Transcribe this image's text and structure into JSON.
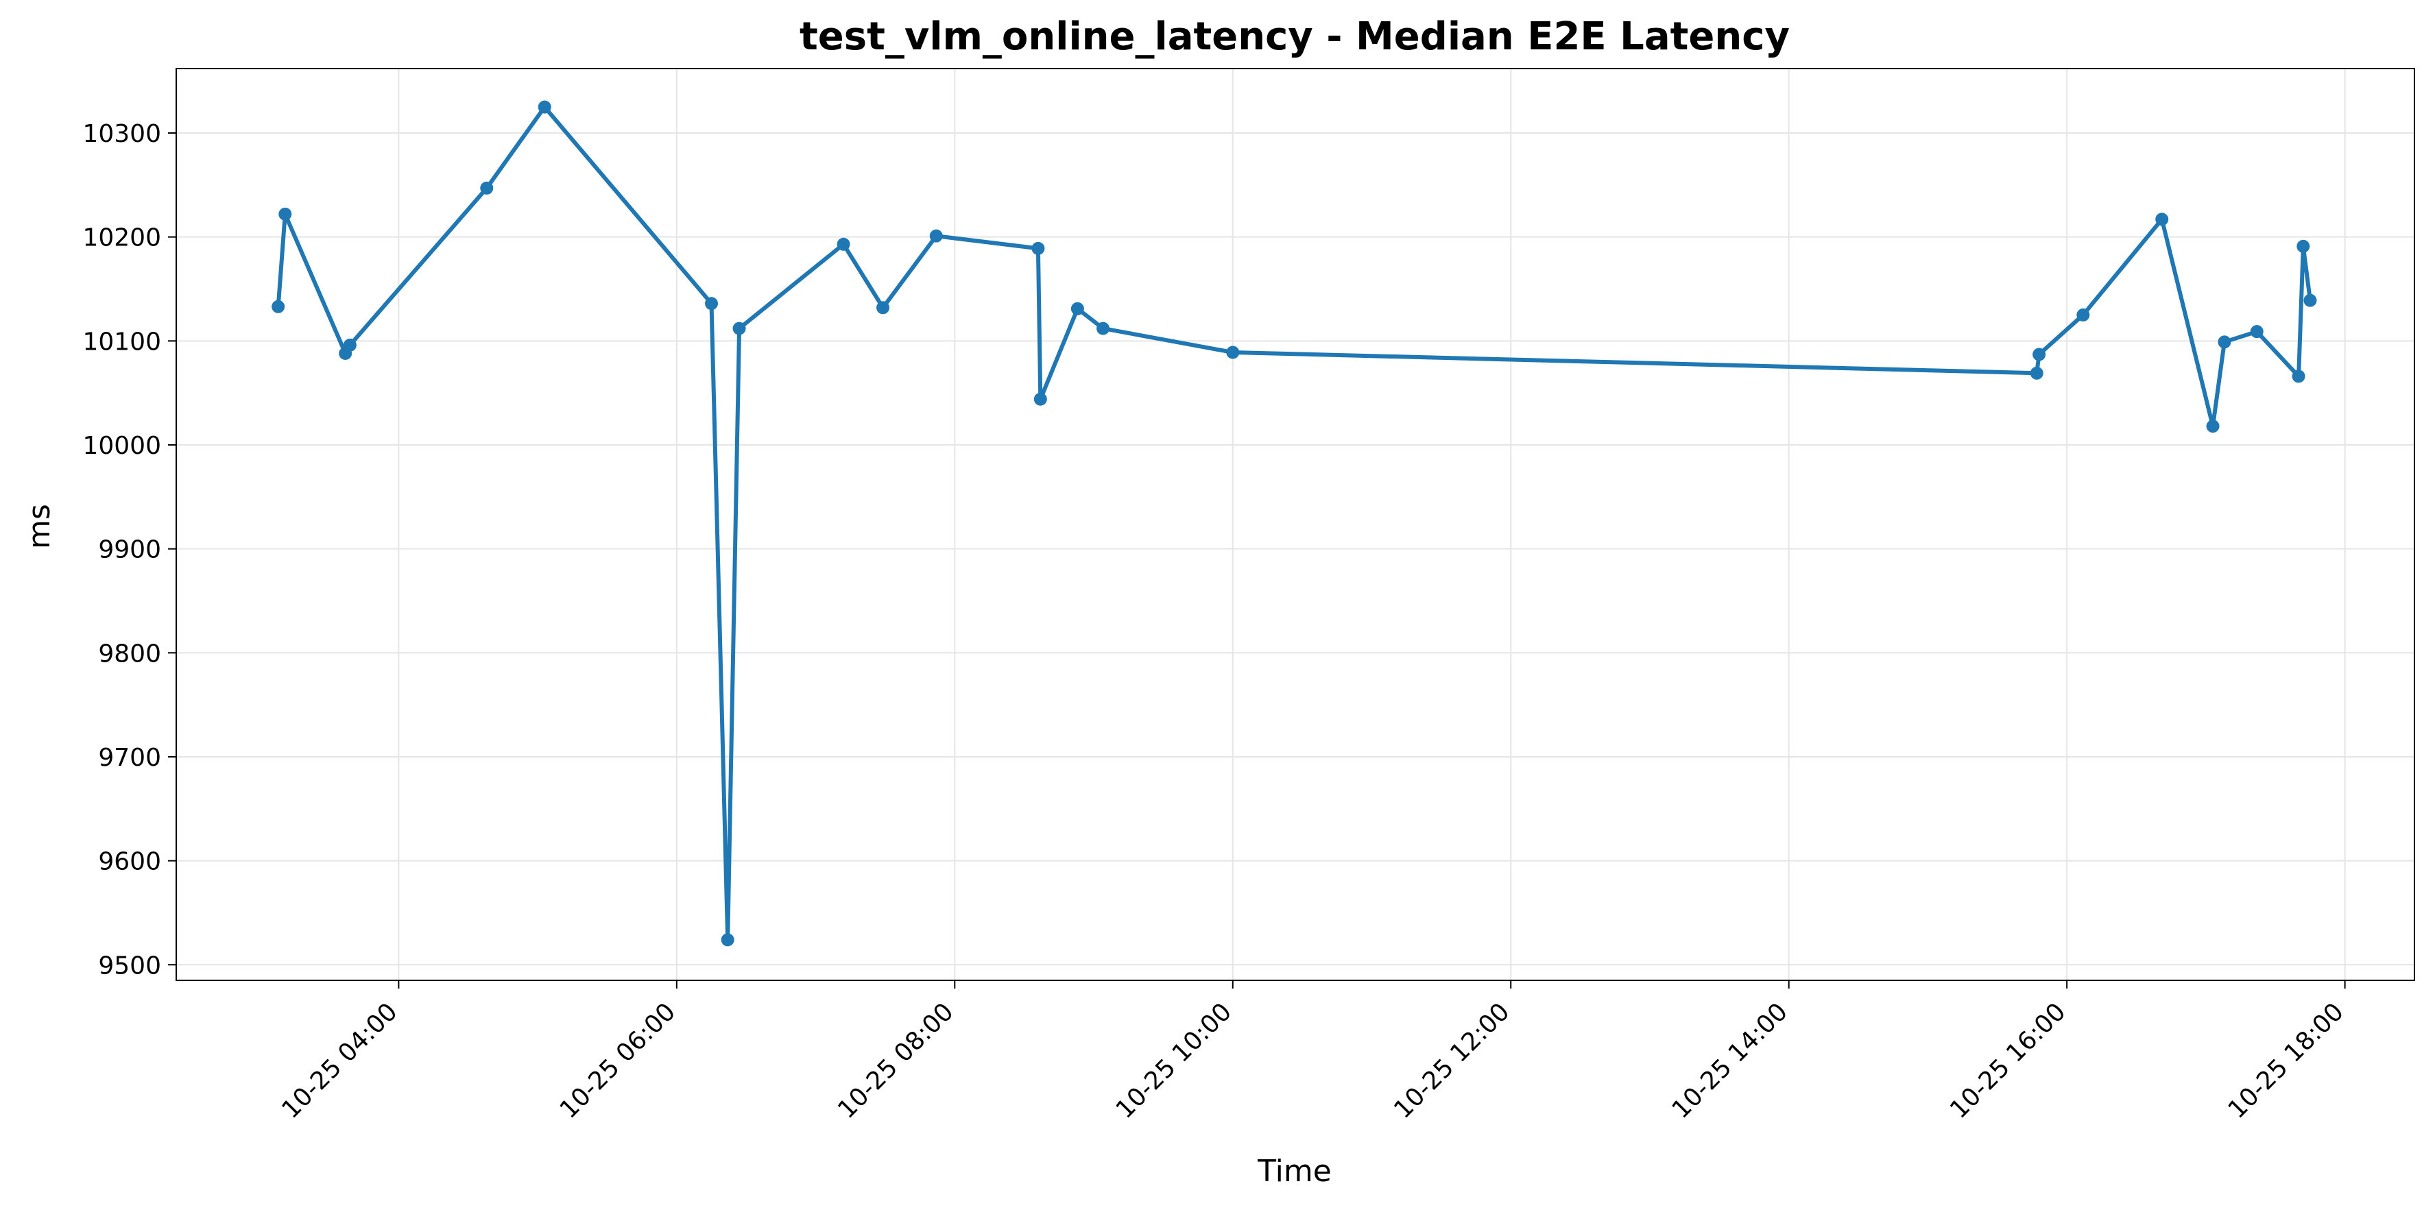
{
  "chart_data": {
    "type": "line",
    "title": "test_vlm_online_latency - Median E2E Latency",
    "xlabel": "Time",
    "ylabel": "ms",
    "ylim": [
      9485,
      10362
    ],
    "xlim": [
      "10-25 02:24",
      "10-25 18:30"
    ],
    "yticks": [
      9500,
      9600,
      9700,
      9800,
      9900,
      10000,
      10100,
      10200,
      10300
    ],
    "xticks": [
      {
        "value": "10-25 04:00",
        "label": "10-25 04:00"
      },
      {
        "value": "10-25 06:00",
        "label": "10-25 06:00"
      },
      {
        "value": "10-25 08:00",
        "label": "10-25 08:00"
      },
      {
        "value": "10-25 10:00",
        "label": "10-25 10:00"
      },
      {
        "value": "10-25 12:00",
        "label": "10-25 12:00"
      },
      {
        "value": "10-25 14:00",
        "label": "10-25 14:00"
      },
      {
        "value": "10-25 16:00",
        "label": "10-25 16:00"
      },
      {
        "value": "10-25 18:00",
        "label": "10-25 18:00"
      }
    ],
    "grid": true,
    "series": [
      {
        "color": "#1f77b4",
        "points": [
          {
            "x": "10-25 03:08",
            "y": 10133
          },
          {
            "x": "10-25 03:11",
            "y": 10222
          },
          {
            "x": "10-25 03:37",
            "y": 10088
          },
          {
            "x": "10-25 03:39",
            "y": 10096
          },
          {
            "x": "10-25 04:38",
            "y": 10247
          },
          {
            "x": "10-25 05:03",
            "y": 10325
          },
          {
            "x": "10-25 06:15",
            "y": 10136
          },
          {
            "x": "10-25 06:22",
            "y": 9524
          },
          {
            "x": "10-25 06:27",
            "y": 10112
          },
          {
            "x": "10-25 07:12",
            "y": 10193
          },
          {
            "x": "10-25 07:29",
            "y": 10132
          },
          {
            "x": "10-25 07:52",
            "y": 10201
          },
          {
            "x": "10-25 08:36",
            "y": 10189
          },
          {
            "x": "10-25 08:37",
            "y": 10044
          },
          {
            "x": "10-25 08:53",
            "y": 10131
          },
          {
            "x": "10-25 09:04",
            "y": 10112
          },
          {
            "x": "10-25 10:00",
            "y": 10089
          },
          {
            "x": "10-25 15:47",
            "y": 10069
          },
          {
            "x": "10-25 15:48",
            "y": 10087
          },
          {
            "x": "10-25 16:07",
            "y": 10125
          },
          {
            "x": "10-25 16:41",
            "y": 10217
          },
          {
            "x": "10-25 17:03",
            "y": 10018
          },
          {
            "x": "10-25 17:08",
            "y": 10099
          },
          {
            "x": "10-25 17:22",
            "y": 10109
          },
          {
            "x": "10-25 17:40",
            "y": 10066
          },
          {
            "x": "10-25 17:42",
            "y": 10191
          },
          {
            "x": "10-25 17:45",
            "y": 10139
          }
        ]
      }
    ]
  }
}
